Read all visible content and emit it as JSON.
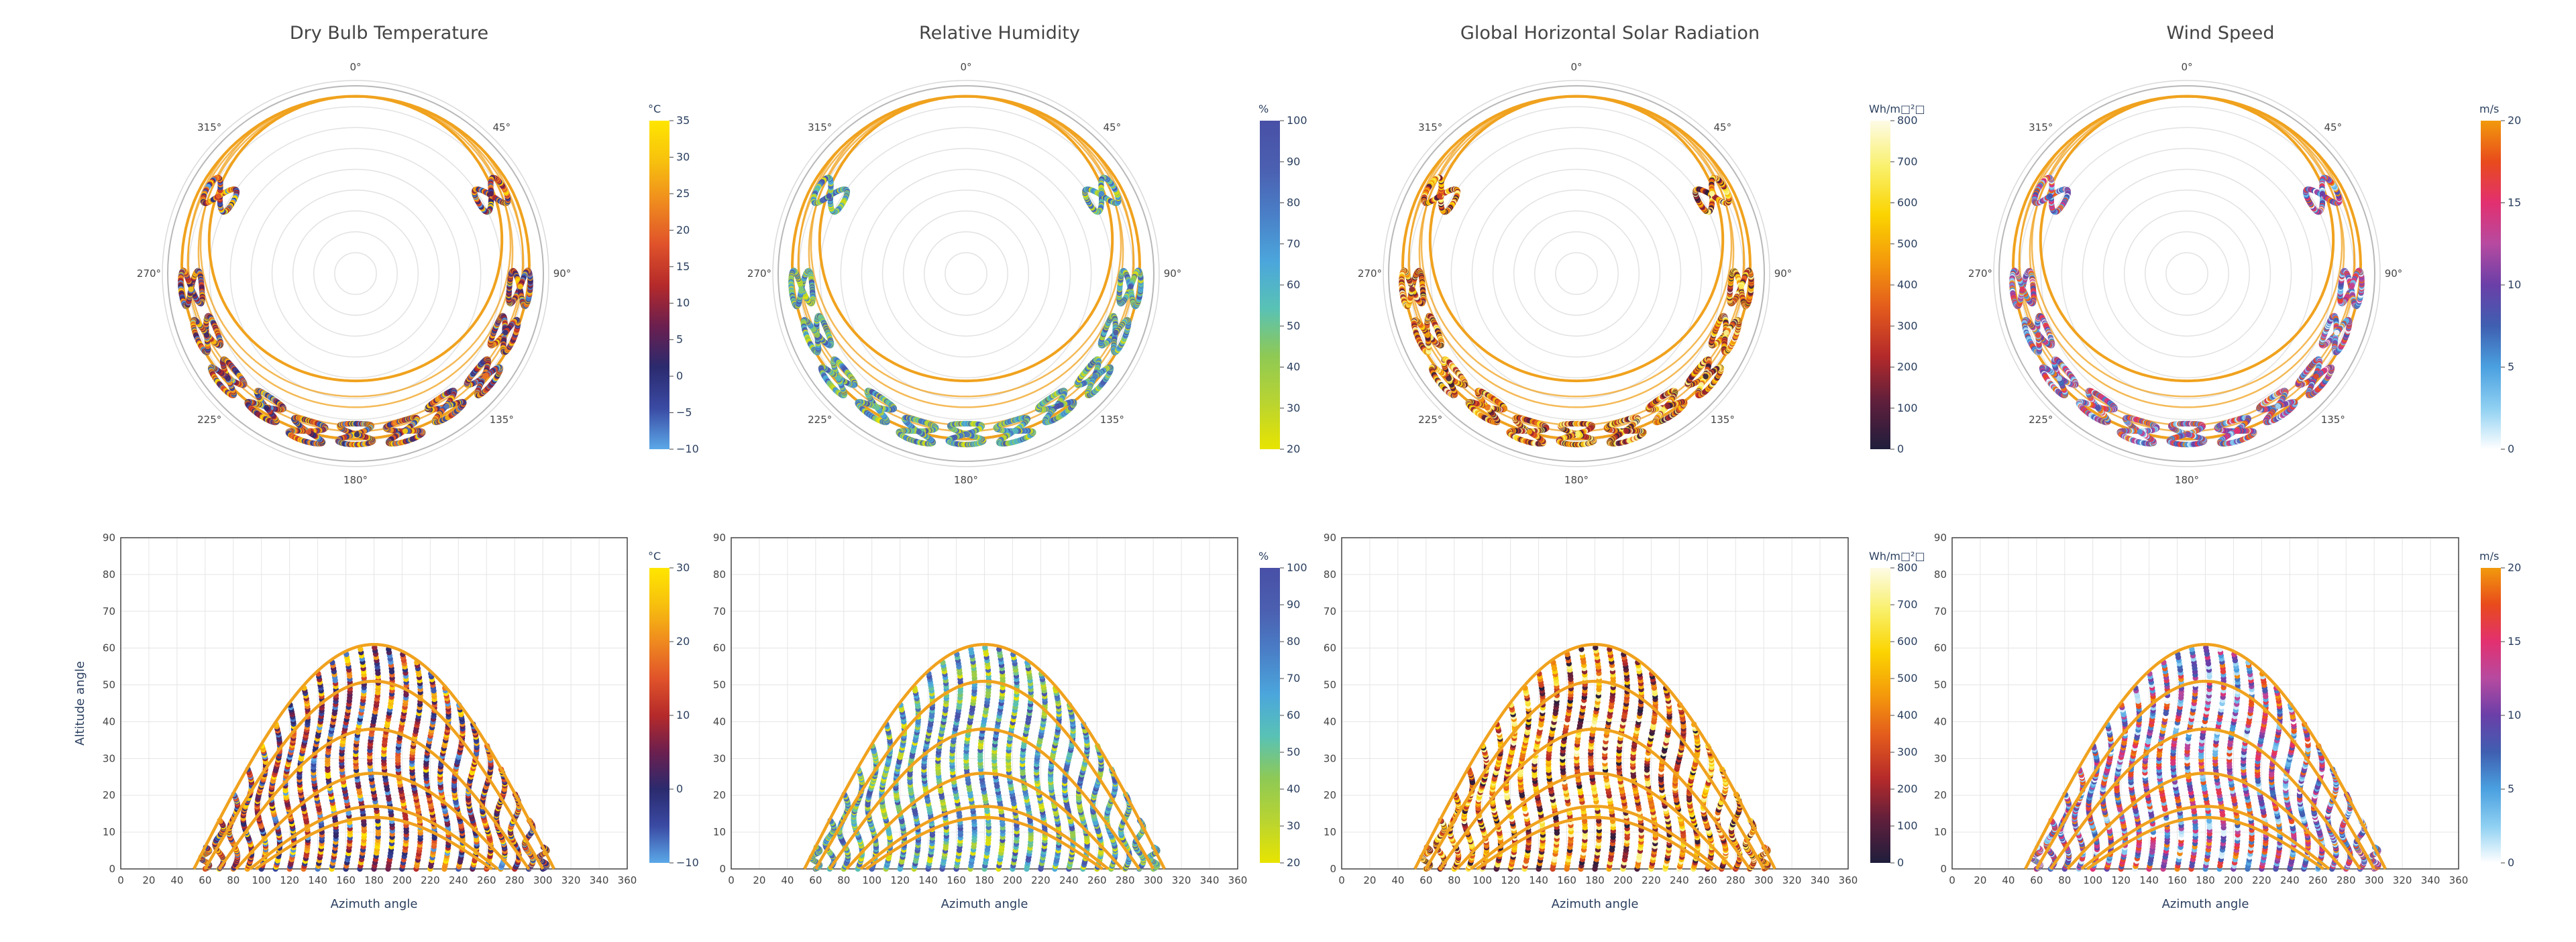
{
  "columns": [
    {
      "title": "Dry Bulb Temperature",
      "colorbar": {
        "unit": "°C",
        "polar_ticks": [
          "35",
          "30",
          "25",
          "20",
          "15",
          "10",
          "5",
          "0",
          "−5",
          "−10"
        ],
        "cart_ticks": [
          "30",
          "20",
          "10",
          "0",
          "−10"
        ],
        "colors": [
          "#5ba8e8",
          "#3a4aa3",
          "#2b2a6e",
          "#6b1f4f",
          "#b52a2a",
          "#e0532a",
          "#ef8a1f",
          "#f7c00e",
          "#ffe600"
        ]
      }
    },
    {
      "title": "Relative Humidity",
      "colorbar": {
        "unit": "%",
        "polar_ticks": [
          "100",
          "90",
          "80",
          "70",
          "60",
          "50",
          "40",
          "30",
          "20"
        ],
        "cart_ticks": [
          "100",
          "90",
          "80",
          "70",
          "60",
          "50",
          "40",
          "30",
          "20"
        ],
        "colors": [
          "#e8e400",
          "#b9d431",
          "#8ec955",
          "#59c2b5",
          "#4ba6dc",
          "#4a7fc7",
          "#4b5fb0",
          "#4850a6"
        ]
      }
    },
    {
      "title": "Global Horizontal Solar Radiation",
      "colorbar": {
        "unit": "Wh/m□²□",
        "polar_ticks": [
          "800",
          "700",
          "600",
          "500",
          "400",
          "300",
          "200",
          "100",
          "0"
        ],
        "cart_ticks": [
          "800",
          "700",
          "600",
          "500",
          "400",
          "300",
          "200",
          "100",
          "0"
        ],
        "colors": [
          "#1f1e3c",
          "#5e1f3c",
          "#b52a2a",
          "#e35a1d",
          "#f49a0b",
          "#fbd400",
          "#f9f06a",
          "#fdfbe6"
        ]
      }
    },
    {
      "title": "Wind Speed",
      "colorbar": {
        "unit": "m/s",
        "polar_ticks": [
          "20",
          "15",
          "10",
          "5",
          "0"
        ],
        "cart_ticks": [
          "20",
          "15",
          "10",
          "5",
          "0"
        ],
        "colors": [
          "#ffffff",
          "#8fd0f2",
          "#4aa0e0",
          "#3f5fb0",
          "#6a3fa8",
          "#b64aa0",
          "#e23070",
          "#e84a1c",
          "#f29a0c"
        ]
      }
    }
  ],
  "polar_angle_labels": [
    "0°",
    "45°",
    "90°",
    "135°",
    "180°",
    "225°",
    "270°",
    "315°"
  ],
  "cartesian_axes": {
    "xlabel": "Azimuth angle",
    "ylabel": "Altitude angle",
    "xticks": [
      "0",
      "20",
      "40",
      "60",
      "80",
      "100",
      "120",
      "140",
      "160",
      "180",
      "200",
      "220",
      "240",
      "260",
      "280",
      "300",
      "320",
      "340",
      "360"
    ],
    "yticks_first": [
      "0",
      "10",
      "20",
      "30",
      "40",
      "50",
      "60",
      "70",
      "80",
      "90"
    ],
    "yticks_other": [
      "0",
      "10",
      "20",
      "30",
      "40",
      "50",
      "60",
      "70",
      "80",
      "90"
    ]
  },
  "chart_data": [
    {
      "type": "scatter",
      "title": "Dry Bulb Temperature",
      "projection": "polar",
      "variable": "temperature",
      "unit": "°C",
      "color_range": [
        -10,
        35
      ],
      "sun_path_max_altitude": 61,
      "analemma_azimuths": [
        80,
        100,
        120,
        140,
        160,
        180,
        200,
        220,
        240,
        260,
        280
      ]
    },
    {
      "type": "scatter",
      "title": "Relative Humidity",
      "projection": "polar",
      "variable": "relative humidity",
      "unit": "%",
      "color_range": [
        20,
        100
      ],
      "sun_path_max_altitude": 61
    },
    {
      "type": "scatter",
      "title": "Global Horizontal Solar Radiation",
      "projection": "polar",
      "variable": "radiation",
      "color_range": [
        0,
        850
      ],
      "sun_path_max_altitude": 61
    },
    {
      "type": "scatter",
      "title": "Wind Speed",
      "projection": "polar",
      "variable": "wind speed",
      "unit": "m/s",
      "color_range": [
        0,
        20
      ],
      "sun_path_max_altitude": 61
    },
    {
      "type": "scatter",
      "projection": "cartesian",
      "xlabel": "Azimuth angle",
      "ylabel": "Altitude angle",
      "xlim": [
        0,
        360
      ],
      "ylim": [
        0,
        90
      ],
      "sun_paths": [
        {
          "max_altitude": 61,
          "x_range": [
            52,
            308
          ]
        },
        {
          "max_altitude": 51,
          "x_range": [
            60,
            300
          ]
        },
        {
          "max_altitude": 38,
          "x_range": [
            70,
            290
          ]
        },
        {
          "max_altitude": 26,
          "x_range": [
            82,
            278
          ]
        },
        {
          "max_altitude": 17,
          "x_range": [
            92,
            268
          ]
        },
        {
          "max_altitude": 14,
          "x_range": [
            96,
            264
          ]
        }
      ],
      "analemma_centers": [
        60,
        70,
        80,
        90,
        100,
        110,
        120,
        130,
        140,
        150,
        160,
        170,
        180,
        190,
        200,
        210,
        220,
        230,
        240,
        250,
        260,
        270,
        280,
        290,
        300
      ]
    }
  ],
  "style": {
    "path_color": "#f0a21e",
    "grid_color": "#e5e5e5",
    "axis_color": "#2a3f5f"
  }
}
